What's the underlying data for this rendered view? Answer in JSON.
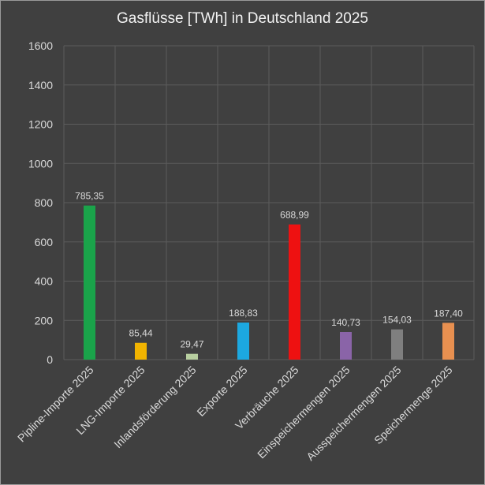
{
  "chart_data": {
    "type": "bar",
    "title": "Gasflüsse [TWh] in Deutschland 2025",
    "xlabel": "",
    "ylabel": "",
    "ylim": [
      0,
      1600
    ],
    "yticks": [
      "0",
      "200",
      "400",
      "600",
      "800",
      "1000",
      "1200",
      "1400",
      "1600"
    ],
    "grid": true,
    "categories": [
      "Pipline-Importe 2025",
      "LNG-Importe 2025",
      "Inlandsförderung 2025",
      "Exporte 2025",
      "Verbräuche 2025",
      "Einspeichermengen 2025",
      "Ausspeichermengen 2025",
      "Speichermenge 2025"
    ],
    "values": [
      785.35,
      85.44,
      29.47,
      188.83,
      688.99,
      140.73,
      154.03,
      187.4
    ],
    "data_labels": [
      "785,35",
      "85,44",
      "29,47",
      "188,83",
      "688,99",
      "140,73",
      "154,03",
      "187,40"
    ],
    "colors": [
      "#1aa34a",
      "#f2b400",
      "#b8cfa0",
      "#1ca8e0",
      "#ee1111",
      "#8a64a8",
      "#7f7f7f",
      "#e89050"
    ],
    "background": "#404040",
    "gridline_color": "#5c5c5c"
  }
}
